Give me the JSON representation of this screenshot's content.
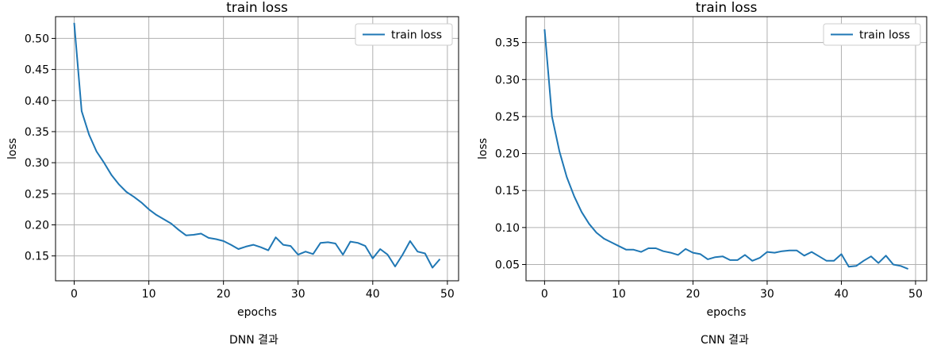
{
  "captions": [
    "DNN 결과",
    "CNN 결과"
  ],
  "colors": {
    "line": "#1f77b4",
    "grid": "#b0b0b0",
    "frame": "#000000",
    "legend_border": "#cccccc"
  },
  "chart_data": [
    {
      "type": "line",
      "title": "train loss",
      "xlabel": "epochs",
      "ylabel": "loss",
      "xlim": [
        -2.5,
        51.5
      ],
      "ylim": [
        0.11,
        0.535
      ],
      "xticks": [
        0,
        10,
        20,
        30,
        40,
        50
      ],
      "yticks": [
        0.15,
        0.2,
        0.25,
        0.3,
        0.35,
        0.4,
        0.45,
        0.5
      ],
      "ytick_labels": [
        "0.15",
        "0.20",
        "0.25",
        "0.30",
        "0.35",
        "0.40",
        "0.45",
        "0.50"
      ],
      "grid": true,
      "legend_loc": "upper right",
      "series": [
        {
          "name": "train loss",
          "x": [
            0,
            1,
            2,
            3,
            4,
            5,
            6,
            7,
            8,
            9,
            10,
            11,
            12,
            13,
            14,
            15,
            16,
            17,
            18,
            19,
            20,
            21,
            22,
            23,
            24,
            25,
            26,
            27,
            28,
            29,
            30,
            31,
            32,
            33,
            34,
            35,
            36,
            37,
            38,
            39,
            40,
            41,
            42,
            43,
            44,
            45,
            46,
            47,
            48,
            49
          ],
          "y": [
            0.525,
            0.383,
            0.345,
            0.318,
            0.3,
            0.28,
            0.265,
            0.253,
            0.245,
            0.236,
            0.225,
            0.216,
            0.209,
            0.202,
            0.192,
            0.183,
            0.184,
            0.186,
            0.179,
            0.177,
            0.174,
            0.168,
            0.161,
            0.165,
            0.168,
            0.164,
            0.159,
            0.18,
            0.168,
            0.166,
            0.152,
            0.157,
            0.153,
            0.171,
            0.172,
            0.17,
            0.152,
            0.173,
            0.171,
            0.166,
            0.146,
            0.161,
            0.152,
            0.133,
            0.152,
            0.174,
            0.157,
            0.154,
            0.131,
            0.145
          ]
        }
      ]
    },
    {
      "type": "line",
      "title": "train loss",
      "xlabel": "epochs",
      "ylabel": "loss",
      "xlim": [
        -2.5,
        51.5
      ],
      "ylim": [
        0.028,
        0.385
      ],
      "xticks": [
        0,
        10,
        20,
        30,
        40,
        50
      ],
      "yticks": [
        0.05,
        0.1,
        0.15,
        0.2,
        0.25,
        0.3,
        0.35
      ],
      "ytick_labels": [
        "0.05",
        "0.10",
        "0.15",
        "0.20",
        "0.25",
        "0.30",
        "0.35"
      ],
      "grid": true,
      "legend_loc": "upper right",
      "series": [
        {
          "name": "train loss",
          "x": [
            0,
            1,
            2,
            3,
            4,
            5,
            6,
            7,
            8,
            9,
            10,
            11,
            12,
            13,
            14,
            15,
            16,
            17,
            18,
            19,
            20,
            21,
            22,
            23,
            24,
            25,
            26,
            27,
            28,
            29,
            30,
            31,
            32,
            33,
            34,
            35,
            36,
            37,
            38,
            39,
            40,
            41,
            42,
            43,
            44,
            45,
            46,
            47,
            48,
            49
          ],
          "y": [
            0.368,
            0.25,
            0.203,
            0.168,
            0.142,
            0.121,
            0.105,
            0.093,
            0.085,
            0.08,
            0.075,
            0.07,
            0.07,
            0.067,
            0.072,
            0.072,
            0.068,
            0.066,
            0.063,
            0.071,
            0.066,
            0.064,
            0.057,
            0.06,
            0.061,
            0.056,
            0.056,
            0.063,
            0.055,
            0.059,
            0.067,
            0.066,
            0.068,
            0.069,
            0.069,
            0.062,
            0.067,
            0.061,
            0.055,
            0.055,
            0.064,
            0.047,
            0.048,
            0.055,
            0.061,
            0.052,
            0.062,
            0.05,
            0.048,
            0.044
          ]
        }
      ]
    }
  ]
}
